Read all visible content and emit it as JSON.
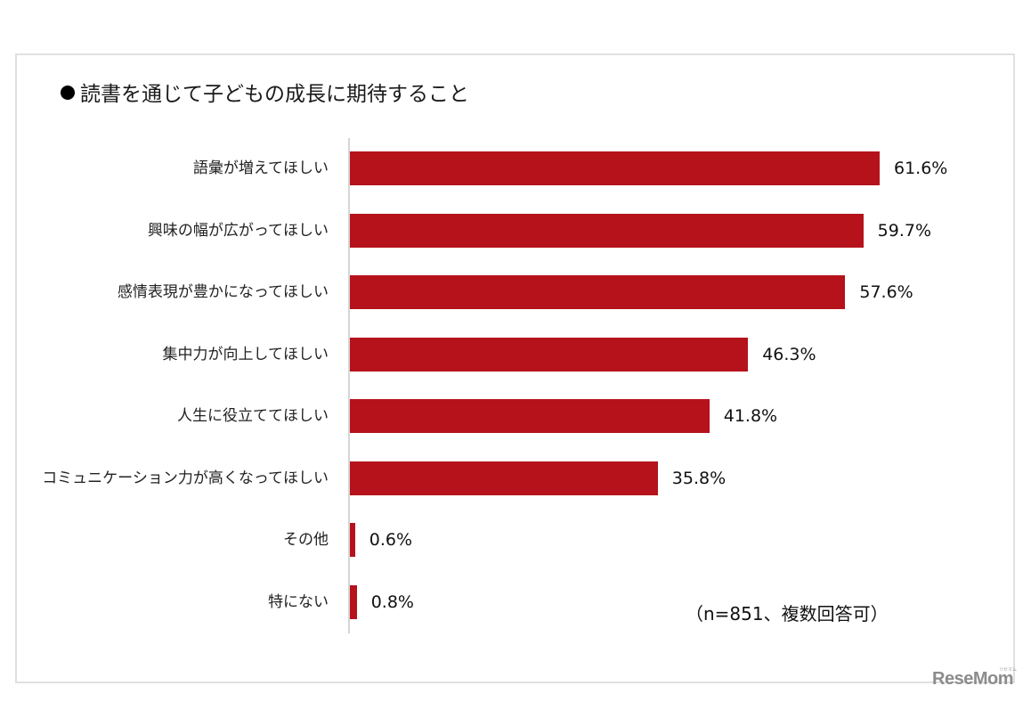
{
  "title": "読書を通じて子どもの成長に期待すること",
  "title_bullet": "●",
  "note": "（n=851、複数回答可）",
  "logo": "ReseMom",
  "logo_sub": "リセマム",
  "colors": {
    "bar": "#b5121b",
    "axis": "#d6d6d6",
    "frame": "#e0e0e0"
  },
  "chart_data": {
    "type": "bar",
    "orientation": "horizontal",
    "title": "●読書を通じて子どもの成長に期待すること",
    "categories": [
      "語彙が増えてほしい",
      "興味の幅が広がってほしい",
      "感情表現が豊かになってほしい",
      "集中力が向上してほしい",
      "人生に役立ててほしい",
      "コミュニケーション力が高くなってほしい",
      "その他",
      "特にない"
    ],
    "values": [
      61.6,
      59.7,
      57.6,
      46.3,
      41.8,
      35.8,
      0.6,
      0.8
    ],
    "value_labels": [
      "61.6%",
      "59.7%",
      "57.6%",
      "46.3%",
      "41.8%",
      "35.8%",
      "0.6%",
      "0.8%"
    ],
    "unit": "%",
    "xlabel": "",
    "ylabel": "",
    "xlim": [
      0,
      70
    ],
    "grid": false,
    "legend": null,
    "annotations": [
      "（n=851、複数回答可）"
    ]
  }
}
